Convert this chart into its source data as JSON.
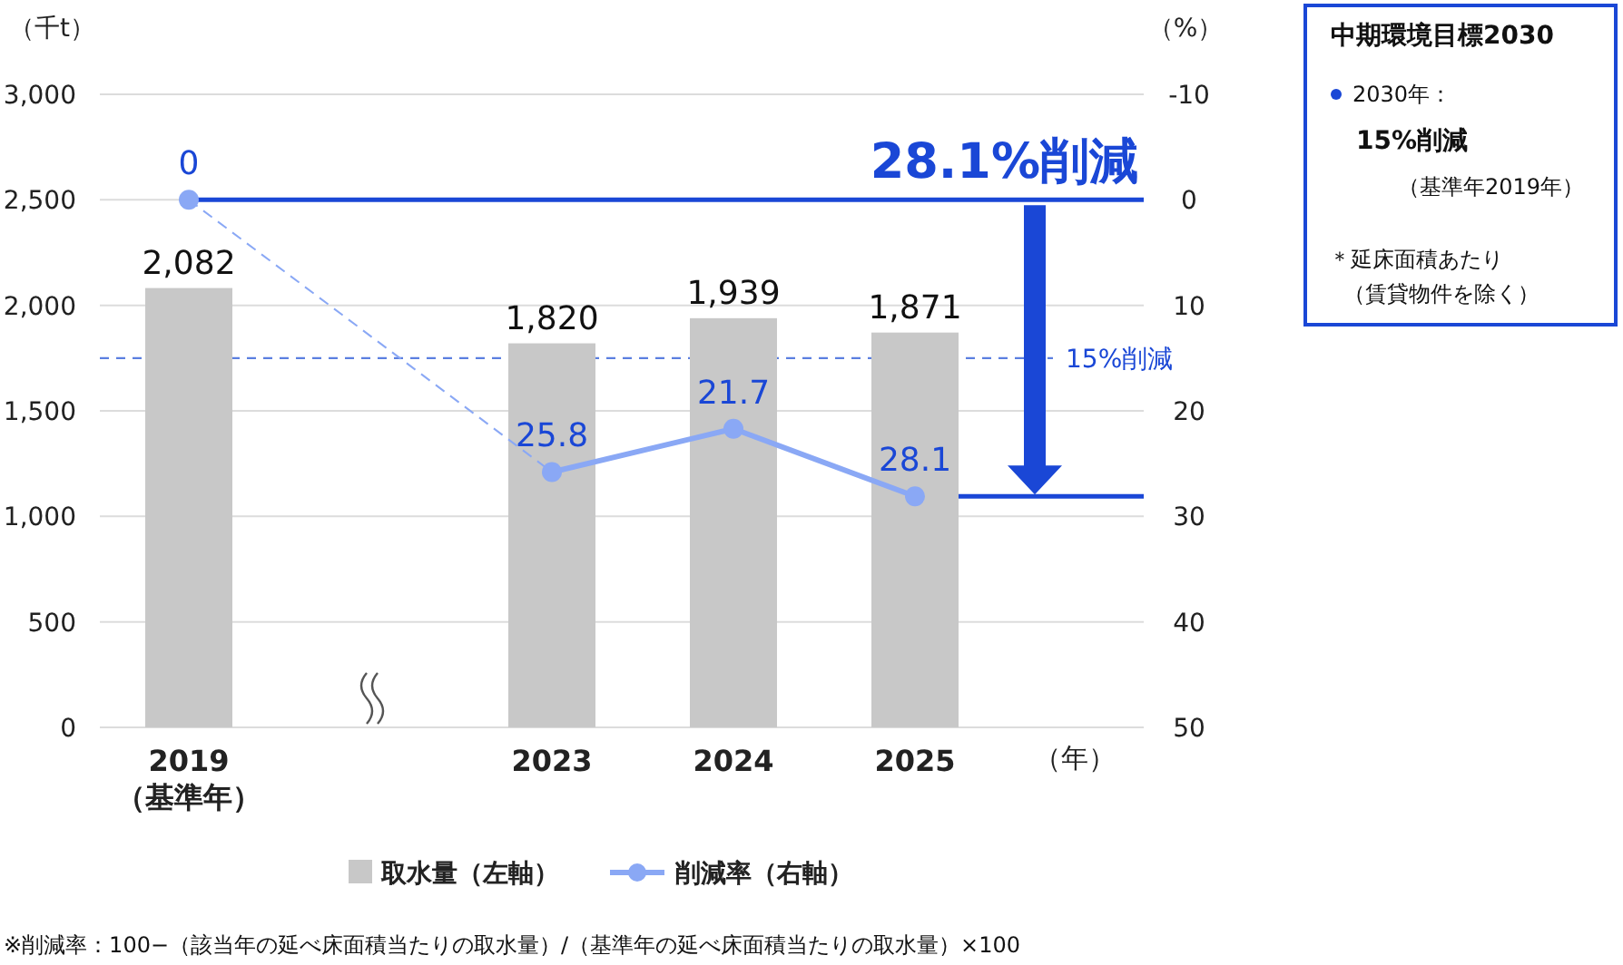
{
  "chart_data": {
    "type": "bar",
    "ylabel": "（千t）",
    "y2label": "（%）",
    "xlabel": "（年）",
    "categories": [
      "2019\n（基準年）",
      null,
      "2023",
      "2024",
      "2025"
    ],
    "series": [
      {
        "name": "取水量（左軸）",
        "color": "#c8c8c8",
        "values": [
          2082,
          null,
          1820,
          1939,
          1871
        ],
        "value_labels": [
          "2,082",
          null,
          "1,820",
          "1,939",
          "1,871"
        ]
      },
      {
        "name": "削減率（右軸）",
        "type": "line",
        "axis": "y2",
        "color": "#8aa8f5",
        "marker": "circle",
        "values": [
          0,
          null,
          25.8,
          21.7,
          28.1
        ]
      }
    ],
    "data_labels": true,
    "ylim": [
      0,
      3000
    ],
    "yticks": [
      {
        "value": 0,
        "label": "0"
      },
      {
        "value": 500,
        "label": "500"
      },
      {
        "value": 1000,
        "label": "1,000"
      },
      {
        "value": 1500,
        "label": "1,500"
      },
      {
        "value": 2000,
        "label": "2,000"
      },
      {
        "value": 2500,
        "label": "2,500"
      },
      {
        "value": 3000,
        "label": "3,000"
      }
    ],
    "y2lim": [
      50,
      -10
    ],
    "y2ticks": [
      -10,
      0,
      10,
      20,
      30,
      40,
      50
    ],
    "grid": "y",
    "legend": "bottom",
    "ref_lines": [
      {
        "axis": "y2",
        "value": 0,
        "color": "#1a47d6",
        "line_style": "solid"
      },
      {
        "axis": "y2",
        "value": 15,
        "label": "15%削減",
        "color": "#5b7fe0",
        "line_style": "dashed"
      },
      {
        "axis": "y2",
        "value": 28.1,
        "color": "#1a47d6",
        "line_style": "solid"
      }
    ],
    "annotations": [
      "28.1%削減",
      "中期環境目標2030",
      "2030年：",
      "15%削減",
      "（基準年2019年）",
      "＊延床面積あたり",
      "（賃貸物件を除く）",
      "※削減率：100−（該当年の延べ床面積当たりの取水量）/（基準年の延べ床面積当たりの取水量）×100"
    ]
  }
}
